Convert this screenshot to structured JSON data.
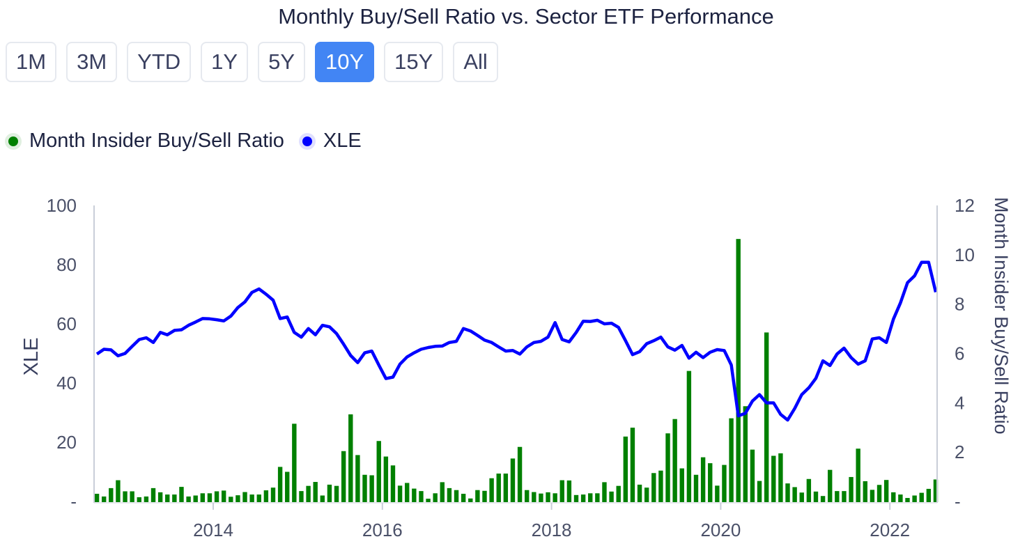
{
  "title": "Monthly Buy/Sell Ratio vs. Sector ETF Performance",
  "range_buttons": [
    "1M",
    "3M",
    "YTD",
    "1Y",
    "5Y",
    "10Y",
    "15Y",
    "All"
  ],
  "active_range": "10Y",
  "menu_icon": "more-vertical-icon",
  "legend": [
    {
      "label": "Month Insider Buy/Sell Ratio",
      "color": "#008000"
    },
    {
      "label": "XLE",
      "color": "#0000ff"
    }
  ],
  "chart_data": {
    "type": "bar+line",
    "xaxis": {
      "ticks": [
        "2014",
        "2016",
        "2018",
        "2020",
        "2022"
      ],
      "range": [
        "2012-08",
        "2022-07"
      ]
    },
    "yaxis_left": {
      "label": "XLE",
      "ticks": [
        "-",
        "20",
        "40",
        "60",
        "80",
        "100"
      ],
      "range": [
        0,
        100
      ]
    },
    "yaxis_right": {
      "label": "Month Insider Buy/Sell Ratio",
      "ticks": [
        "-",
        "2",
        "4",
        "6",
        "8",
        "10",
        "12"
      ],
      "range": [
        0,
        12
      ]
    },
    "grid": false,
    "legend_position": "top-left",
    "months": [
      "2012-08",
      "2012-09",
      "2012-10",
      "2012-11",
      "2012-12",
      "2013-01",
      "2013-02",
      "2013-03",
      "2013-04",
      "2013-05",
      "2013-06",
      "2013-07",
      "2013-08",
      "2013-09",
      "2013-10",
      "2013-11",
      "2013-12",
      "2014-01",
      "2014-02",
      "2014-03",
      "2014-04",
      "2014-05",
      "2014-06",
      "2014-07",
      "2014-08",
      "2014-09",
      "2014-10",
      "2014-11",
      "2014-12",
      "2015-01",
      "2015-02",
      "2015-03",
      "2015-04",
      "2015-05",
      "2015-06",
      "2015-07",
      "2015-08",
      "2015-09",
      "2015-10",
      "2015-11",
      "2015-12",
      "2016-01",
      "2016-02",
      "2016-03",
      "2016-04",
      "2016-05",
      "2016-06",
      "2016-07",
      "2016-08",
      "2016-09",
      "2016-10",
      "2016-11",
      "2016-12",
      "2017-01",
      "2017-02",
      "2017-03",
      "2017-04",
      "2017-05",
      "2017-06",
      "2017-07",
      "2017-08",
      "2017-09",
      "2017-10",
      "2017-11",
      "2017-12",
      "2018-01",
      "2018-02",
      "2018-03",
      "2018-04",
      "2018-05",
      "2018-06",
      "2018-07",
      "2018-08",
      "2018-09",
      "2018-10",
      "2018-11",
      "2018-12",
      "2019-01",
      "2019-02",
      "2019-03",
      "2019-04",
      "2019-05",
      "2019-06",
      "2019-07",
      "2019-08",
      "2019-09",
      "2019-10",
      "2019-11",
      "2019-12",
      "2020-01",
      "2020-02",
      "2020-03",
      "2020-04",
      "2020-05",
      "2020-06",
      "2020-07",
      "2020-08",
      "2020-09",
      "2020-10",
      "2020-11",
      "2020-12",
      "2021-01",
      "2021-02",
      "2021-03",
      "2021-04",
      "2021-05",
      "2021-06",
      "2021-07",
      "2021-08",
      "2021-09",
      "2021-10",
      "2021-11",
      "2021-12",
      "2022-01",
      "2022-02",
      "2022-03",
      "2022-04",
      "2022-05",
      "2022-06",
      "2022-07"
    ],
    "series": [
      {
        "name": "Month Insider Buy/Sell Ratio",
        "type": "bar",
        "axis": "right",
        "color": "#008000",
        "values": [
          0.31,
          0.2,
          0.54,
          0.86,
          0.41,
          0.41,
          0.17,
          0.2,
          0.54,
          0.37,
          0.28,
          0.28,
          0.59,
          0.2,
          0.24,
          0.33,
          0.33,
          0.41,
          0.44,
          0.19,
          0.25,
          0.38,
          0.28,
          0.28,
          0.45,
          0.56,
          1.4,
          1.2,
          3.15,
          0.42,
          0.63,
          0.79,
          0.24,
          0.68,
          0.63,
          2.04,
          3.53,
          1.88,
          1.08,
          1.06,
          2.45,
          1.82,
          1.46,
          0.64,
          0.75,
          0.52,
          0.42,
          0.11,
          0.33,
          0.78,
          0.54,
          0.46,
          0.31,
          0.12,
          0.46,
          0.43,
          0.94,
          1.13,
          1.13,
          1.74,
          2.21,
          0.46,
          0.38,
          0.32,
          0.37,
          0.33,
          0.86,
          0.85,
          0.26,
          0.28,
          0.33,
          0.33,
          0.78,
          0.4,
          0.63,
          2.63,
          2.99,
          0.68,
          0.56,
          1.15,
          1.25,
          2.76,
          3.34,
          1.34,
          5.29,
          1.08,
          1.79,
          1.55,
          0.64,
          1.48,
          3.37,
          10.64,
          3.86,
          2.1,
          0.83,
          6.85,
          1.85,
          1.95,
          0.73,
          0.58,
          0.36,
          0.91,
          0.4,
          0.22,
          1.28,
          0.42,
          0.42,
          0.99,
          2.14,
          0.82,
          0.47,
          0.67,
          0.87,
          0.37,
          0.28,
          0.14,
          0.24,
          0.35,
          0.51,
          0.89
        ]
      },
      {
        "name": "XLE",
        "type": "line",
        "axis": "left",
        "color": "#0000ff",
        "values": [
          49.8,
          51.4,
          51.2,
          49.2,
          50.0,
          52.4,
          54.7,
          55.3,
          53.7,
          57.1,
          56.3,
          57.8,
          58.0,
          59.5,
          60.6,
          61.8,
          61.7,
          61.4,
          61.0,
          62.6,
          65.5,
          67.4,
          70.6,
          71.8,
          70.0,
          68.0,
          61.8,
          62.3,
          57.1,
          55.5,
          58.4,
          56.3,
          59.5,
          59.0,
          56.7,
          53.1,
          49.3,
          46.9,
          50.2,
          50.8,
          46.1,
          41.5,
          42.0,
          46.4,
          48.8,
          50.2,
          51.4,
          52.0,
          52.4,
          52.5,
          53.7,
          54.1,
          58.4,
          57.6,
          56.1,
          54.5,
          53.7,
          52.2,
          50.8,
          51.0,
          49.8,
          52.2,
          53.7,
          54.1,
          55.5,
          60.4,
          54.7,
          53.9,
          57.1,
          60.9,
          60.8,
          61.2,
          60.0,
          60.2,
          58.8,
          54.3,
          49.6,
          50.6,
          53.3,
          54.3,
          55.5,
          52.2,
          51.1,
          52.7,
          48.4,
          50.4,
          48.6,
          50.4,
          51.3,
          51.0,
          46.1,
          28.9,
          29.8,
          33.9,
          36.1,
          33.3,
          33.3,
          29.4,
          27.5,
          31.4,
          36.1,
          38.4,
          41.6,
          47.5,
          45.9,
          49.8,
          51.8,
          48.6,
          46.4,
          47.5,
          54.9,
          55.3,
          53.7,
          61.6,
          67.1,
          73.9,
          76.2,
          80.8,
          80.8,
          70.7
        ]
      }
    ]
  }
}
